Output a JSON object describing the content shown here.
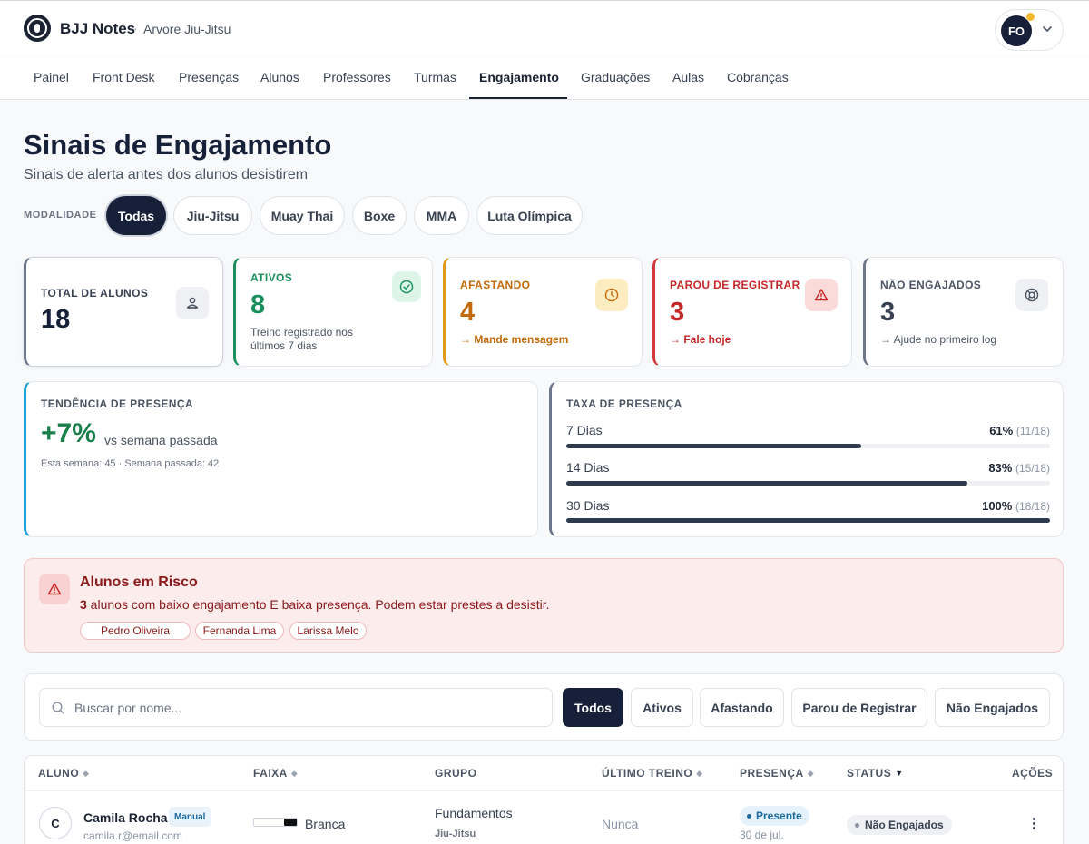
{
  "header": {
    "app_title": "BJJ Notes",
    "separator": "·",
    "gym_name": "Arvore Jiu-Jitsu",
    "user_initials": "FO",
    "logo_icon": "bjj-logo-icon",
    "notification_color": "#f5b82e"
  },
  "nav": {
    "items": [
      "Painel",
      "Front Desk",
      "Presenças",
      "Alunos",
      "Professores",
      "Turmas",
      "Engajamento",
      "Graduações",
      "Aulas",
      "Cobranças"
    ],
    "active": "Engajamento"
  },
  "page": {
    "title": "Sinais de Engajamento",
    "subtitle": "Sinais de alerta antes dos alunos desistirem"
  },
  "modality": {
    "label": "MODALIDADE",
    "options": [
      "Todas",
      "Jiu-Jitsu",
      "Muay Thai",
      "Boxe",
      "MMA",
      "Luta Olímpica"
    ],
    "selected": "Todas"
  },
  "stats": [
    {
      "label": "TOTAL DE ALUNOS",
      "value": "18",
      "sub": "",
      "icon": "users-icon",
      "color": "#6b7689"
    },
    {
      "label": "ATIVOS",
      "value": "8",
      "sub": "Treino registrado nos últimos 7 dias",
      "icon": "check-circle-icon",
      "color": "#1a8f5c"
    },
    {
      "label": "AFASTANDO",
      "value": "4",
      "sub": "→ Mande mensagem",
      "icon": "clock-icon",
      "color": "#c46a0a"
    },
    {
      "label": "PAROU DE REGISTRAR",
      "value": "3",
      "sub": "→ Fale hoje",
      "icon": "alert-triangle-icon",
      "color": "#c62828"
    },
    {
      "label": "NÃO ENGAJADOS",
      "value": "3",
      "sub": "→ Ajude no primeiro log",
      "icon": "lifebuoy-icon",
      "color": "#4b5563"
    }
  ],
  "trend": {
    "label": "TENDÊNCIA DE PRESENÇA",
    "value": "+7%",
    "vs": "vs semana passada",
    "detail": "Esta semana: 45 · Semana passada: 42"
  },
  "rate": {
    "label": "TAXA DE PRESENÇA",
    "rows": [
      {
        "name": "7 Dias",
        "pct": "61%",
        "count": "(11/18)",
        "fraction": 0.61
      },
      {
        "name": "14 Dias",
        "pct": "83%",
        "count": "(15/18)",
        "fraction": 0.83
      },
      {
        "name": "30 Dias",
        "pct": "100%",
        "count": "(18/18)",
        "fraction": 1.0
      }
    ]
  },
  "risk": {
    "title": "Alunos em Risco",
    "count": "3",
    "text": " alunos com baixo engajamento E baixa presença. Podem estar prestes a desistir.",
    "students": [
      "Pedro Oliveira",
      "Fernanda Lima",
      "Larissa Melo"
    ]
  },
  "filters": {
    "search_placeholder": "Buscar por nome...",
    "buttons": [
      "Todos",
      "Ativos",
      "Afastando",
      "Parou de Registrar",
      "Não Engajados"
    ],
    "selected": "Todos"
  },
  "table": {
    "headers": [
      "ALUNO",
      "FAIXA",
      "GRUPO",
      "ÚLTIMO TREINO",
      "PRESENÇA",
      "STATUS",
      "AÇÕES"
    ],
    "rows": [
      {
        "initial": "C",
        "name": "Camila Rocha",
        "badge": "Manual",
        "email": "camila.r@email.com",
        "belt": "Branca",
        "group": "Fundamentos",
        "group_modality": "Jiu-Jitsu",
        "last_training": "Nunca",
        "presence": "Presente",
        "presence_date": "30 de jul.",
        "status": "Não Engajados"
      }
    ]
  }
}
